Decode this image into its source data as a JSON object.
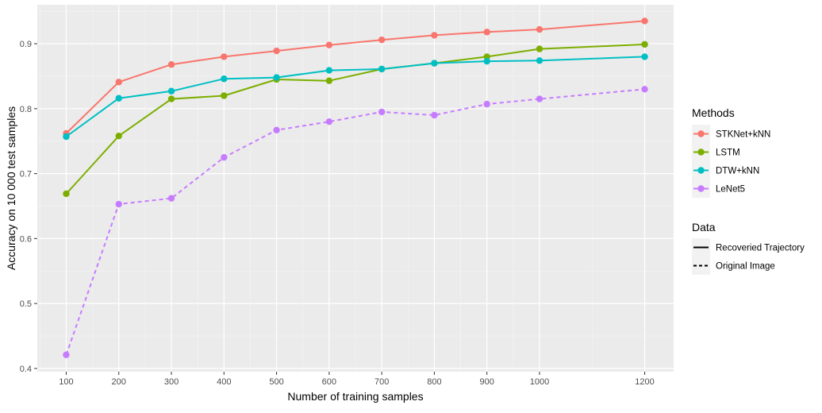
{
  "chart_data": {
    "type": "line",
    "xlabel": "Number of training samples",
    "ylabel": "Accuracy on 10 000 test samples",
    "xlim": [
      45,
      1255
    ],
    "ylim": [
      0.395,
      0.96
    ],
    "x_ticks": [
      100,
      200,
      300,
      400,
      500,
      600,
      700,
      800,
      900,
      1000,
      1200
    ],
    "x_tick_labels": [
      "100",
      "200",
      "300",
      "400",
      "500",
      "600",
      "700",
      "800",
      "900",
      "1000",
      "1200"
    ],
    "y_ticks": [
      0.4,
      0.5,
      0.6,
      0.7,
      0.8,
      0.9
    ],
    "y_tick_labels": [
      "0.4",
      "0.5",
      "0.6",
      "0.7",
      "0.8",
      "0.9"
    ],
    "grid": true,
    "x": [
      100,
      200,
      300,
      400,
      500,
      600,
      700,
      800,
      900,
      1000,
      1200
    ],
    "series": [
      {
        "name": "STKNet+kNN",
        "color": "#F8766D",
        "linetype": "solid",
        "values": [
          0.762,
          0.841,
          0.868,
          0.88,
          0.889,
          0.898,
          0.906,
          0.913,
          0.918,
          0.922,
          0.935
        ]
      },
      {
        "name": "LSTM",
        "color": "#7CAE00",
        "linetype": "solid",
        "values": [
          0.669,
          0.758,
          0.815,
          0.82,
          0.845,
          0.843,
          0.861,
          0.87,
          0.88,
          0.892,
          0.899
        ]
      },
      {
        "name": "DTW+kNN",
        "color": "#00BFC4",
        "linetype": "solid",
        "values": [
          0.757,
          0.816,
          0.827,
          0.846,
          0.848,
          0.859,
          0.861,
          0.87,
          0.873,
          0.874,
          0.88
        ]
      },
      {
        "name": "LeNet5",
        "color": "#C77CFF",
        "linetype": "dashed",
        "values": [
          0.421,
          0.653,
          0.662,
          0.725,
          0.767,
          0.78,
          0.795,
          0.79,
          0.807,
          0.815,
          0.83
        ]
      }
    ],
    "legend_position": "right",
    "legend_methods_title": "Methods",
    "legend_data_title": "Data",
    "legend_data": [
      {
        "label": "Recoveried Trajectory",
        "linetype": "solid"
      },
      {
        "label": "Original Image",
        "linetype": "dashed"
      }
    ]
  },
  "colors": {
    "panel_background": "#EBEBEB",
    "grid_major": "#FFFFFF",
    "key_background": "#F2F2F2"
  }
}
